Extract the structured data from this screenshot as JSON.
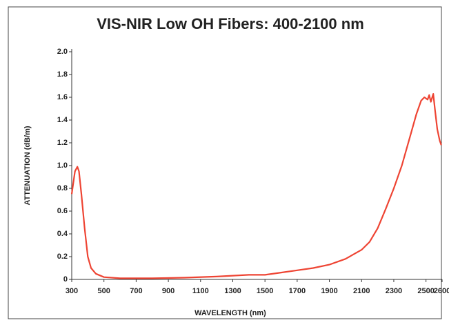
{
  "chart_data": {
    "type": "line",
    "title": "VIS-NIR Low OH Fibers: 400-2100 nm",
    "x_label": "WAVELENGTH (nm)",
    "y_label": "ATTENUATION (dB/m)",
    "x": [
      300,
      320,
      335,
      345,
      360,
      380,
      400,
      420,
      450,
      500,
      600,
      800,
      1000,
      1200,
      1400,
      1500,
      1600,
      1700,
      1800,
      1900,
      2000,
      2100,
      2150,
      2200,
      2250,
      2300,
      2350,
      2400,
      2440,
      2470,
      2490,
      2510,
      2520,
      2530,
      2545,
      2555,
      2570,
      2585,
      2595
    ],
    "values": [
      0.75,
      0.95,
      0.99,
      0.95,
      0.75,
      0.45,
      0.2,
      0.1,
      0.05,
      0.02,
      0.01,
      0.01,
      0.015,
      0.025,
      0.04,
      0.04,
      0.06,
      0.08,
      0.1,
      0.13,
      0.18,
      0.26,
      0.33,
      0.45,
      0.62,
      0.8,
      1.0,
      1.25,
      1.45,
      1.57,
      1.6,
      1.58,
      1.62,
      1.56,
      1.63,
      1.5,
      1.32,
      1.22,
      1.18
    ],
    "color": "#ee4433",
    "xlim": [
      300,
      2600
    ],
    "xticks": [
      300,
      500,
      700,
      900,
      1100,
      1300,
      1500,
      1700,
      1900,
      2100,
      2300,
      2500,
      2600
    ],
    "ylim": [
      0,
      2.0
    ],
    "yticks": [
      0,
      0.2,
      0.4,
      0.6,
      0.8,
      {
        "value": 1.0,
        "label": "1.0"
      },
      1.2,
      1.4,
      1.6,
      1.8,
      {
        "value": 2.0,
        "label": "2.0"
      }
    ],
    "grid": false
  }
}
